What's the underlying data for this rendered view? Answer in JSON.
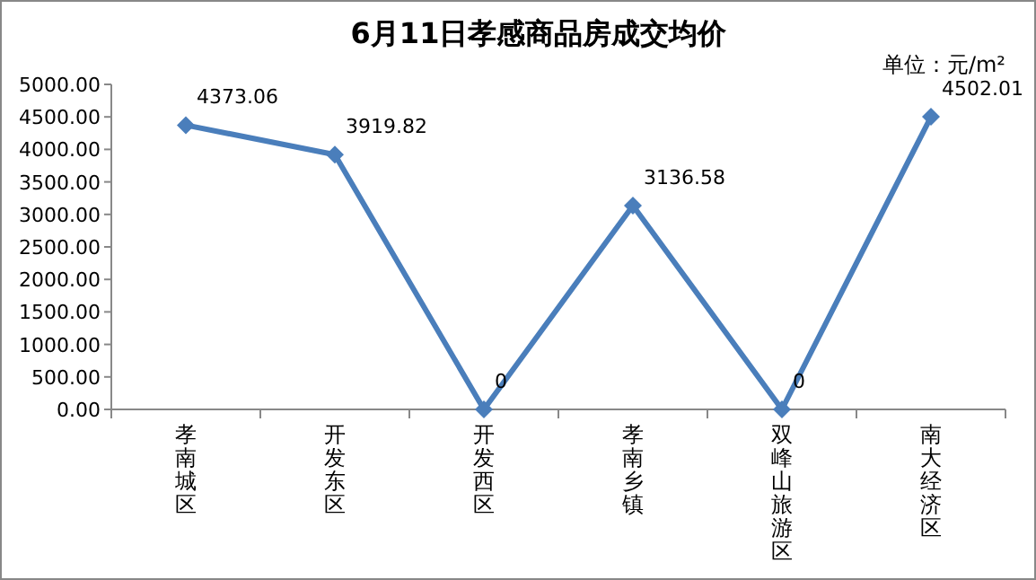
{
  "chart_data": {
    "type": "line",
    "title": "6月11日孝感商品房成交均价",
    "annotations": [
      "单位：元/m²"
    ],
    "categories": [
      "孝南城区",
      "开发东区",
      "开发西区",
      "孝南乡镇",
      "双峰山旅游区",
      "南大经济区"
    ],
    "series": [
      {
        "color": "#4a7ebb",
        "values": [
          4373.06,
          3919.82,
          0,
          3136.58,
          0,
          4502.01
        ]
      }
    ],
    "ylim": [
      0,
      5000
    ],
    "yticks": [
      {
        "value": 0,
        "label": "0.00"
      },
      {
        "value": 500,
        "label": "500.00"
      },
      {
        "value": 1000,
        "label": "1000.00"
      },
      {
        "value": 1500,
        "label": "1500.00"
      },
      {
        "value": 2000,
        "label": "2000.00"
      },
      {
        "value": 2500,
        "label": "2500.00"
      },
      {
        "value": 3000,
        "label": "3000.00"
      },
      {
        "value": 3500,
        "label": "3500.00"
      },
      {
        "value": 4000,
        "label": "4000.00"
      },
      {
        "value": 4500,
        "label": "4500.00"
      },
      {
        "value": 5000,
        "label": "5000.00"
      }
    ],
    "marker": "diamond",
    "data_labels": true
  }
}
